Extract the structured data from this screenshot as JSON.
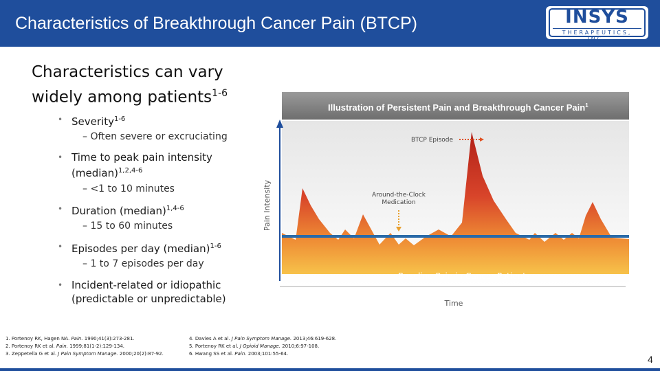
{
  "header": {
    "title": "Characteristics of Breakthrough Cancer Pain (BTCP)",
    "logo_text": "INSYS",
    "logo_sub": "THERAPEUTICS, INC."
  },
  "headline": {
    "line1": "Characteristics can vary",
    "line2": "widely among patients",
    "line2_sup": "1-6"
  },
  "bullets": [
    {
      "text": "Severity",
      "sup": "1-6",
      "sub": "Often severe or excruciating"
    },
    {
      "text": "Time to peak pain intensity",
      "text2": "(median)",
      "sup": "1,2,4-6",
      "sub": "<1 to 10 minutes"
    },
    {
      "text": "Duration (median)",
      "sup": "1,4-6",
      "sub": "15 to 60 minutes"
    },
    {
      "text": "Episodes per day (median)",
      "sup": "1-6",
      "sub": "1 to 7 episodes per day"
    },
    {
      "text": "Incident-related or idiopathic",
      "text2": "(predictable or unpredictable)"
    }
  ],
  "chart": {
    "title": "Illustration of Persistent Pain and Breakthrough Cancer Pain",
    "title_sup": "1",
    "ylabel": "Pain Intensity",
    "xlabel": "Time",
    "legend_btcp": "BTCP Episode",
    "legend_atc_1": "Around-the-Clock",
    "legend_atc_2": "Medication",
    "baseline_label": "Baseline Pain in Cancer Patients",
    "colors": {
      "baseline": "#2a6aa8",
      "peak": "#c8321e",
      "base_fill": "#f0a030",
      "title_bg": "#8a8a8a"
    }
  },
  "references": {
    "col1": [
      {
        "num": "1.",
        "text": "Portenoy RK, Hagen NA.",
        "journal": "Pain.",
        "cite": "1990;41(3):273-281."
      },
      {
        "num": "2.",
        "text": "Portenoy RK et al.",
        "journal": "Pain.",
        "cite": "1999;81(1-2):129-134."
      },
      {
        "num": "3.",
        "text": "Zeppetella G et al.",
        "journal": "J Pain Symptom Manage.",
        "cite": "2000;20(2):87-92."
      }
    ],
    "col2": [
      {
        "num": "4.",
        "text": "Davies A et al.",
        "journal": "J Pain Symptom Manage.",
        "cite": "2013;46:619-628."
      },
      {
        "num": "5.",
        "text": "Portenoy RK et al.",
        "journal": "J Opioid Manage.",
        "cite": "2010;6:97-108."
      },
      {
        "num": "6.",
        "text": "Hwang SS et al.",
        "journal": "Pain.",
        "cite": "2003;101:55-64."
      }
    ]
  },
  "page_number": "4"
}
